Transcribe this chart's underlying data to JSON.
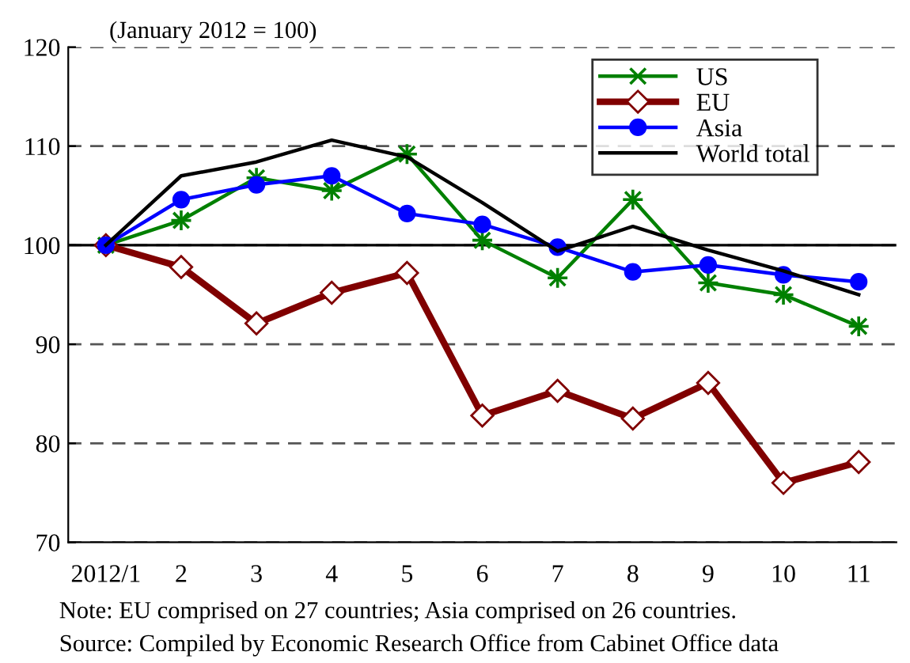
{
  "chart_data": {
    "type": "line",
    "categories": [
      "2012/1",
      "2",
      "3",
      "4",
      "5",
      "6",
      "7",
      "8",
      "9",
      "10",
      "11"
    ],
    "series": [
      {
        "name": "US",
        "color": "#008000",
        "marker": "cross",
        "values": [
          100,
          102.5,
          106.8,
          105.5,
          109.2,
          100.5,
          96.7,
          104.6,
          96.2,
          95.0,
          91.8
        ]
      },
      {
        "name": "EU",
        "color": "#800000",
        "marker": "diamond",
        "values": [
          100,
          97.8,
          92.1,
          95.2,
          97.2,
          82.8,
          85.3,
          82.5,
          86.1,
          76.0,
          78.1
        ]
      },
      {
        "name": "Asia",
        "color": "#0000ff",
        "marker": "circle",
        "values": [
          100,
          104.6,
          106.1,
          107.0,
          103.2,
          102.1,
          99.8,
          97.3,
          98.0,
          97.0,
          96.3
        ]
      },
      {
        "name": "World total",
        "color": "#000000",
        "marker": "none",
        "values": [
          100,
          107.0,
          108.4,
          110.6,
          108.9,
          104.3,
          99.4,
          101.9,
          99.5,
          97.4,
          95.0
        ]
      }
    ],
    "ylim": [
      70,
      120
    ],
    "yticks": [
      70,
      80,
      90,
      100,
      110,
      120
    ],
    "grid": "y",
    "legend": "top right",
    "ref_lines": [
      {
        "axis": "y",
        "value": 100,
        "color": "#000000",
        "line_style": "solid"
      }
    ],
    "annotations": [
      "(January 2012 = 100)",
      "Note: EU comprised on 27 countries; Asia comprised on 26 countries.",
      "Source: Compiled by Economic Research Office from Cabinet Office data"
    ]
  }
}
